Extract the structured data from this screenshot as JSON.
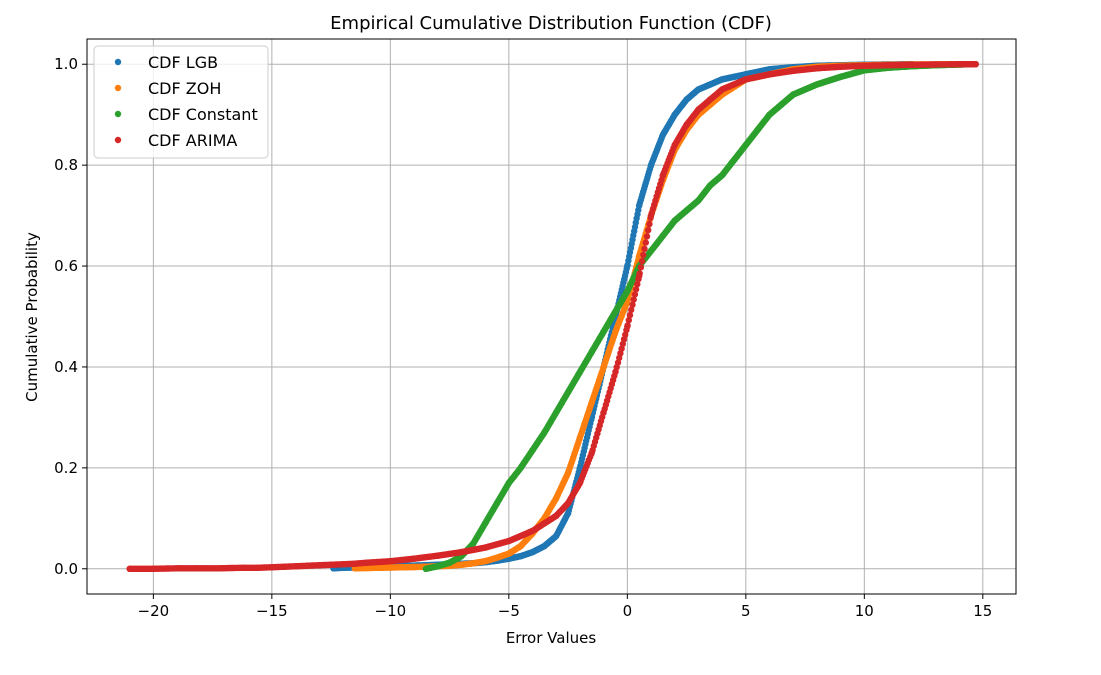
{
  "chart_data": {
    "type": "scatter",
    "title": "Empirical Cumulative Distribution Function (CDF)",
    "xlabel": "Error Values",
    "ylabel": "Cumulative Probability",
    "xlim": [
      -22.8,
      16.4
    ],
    "ylim": [
      -0.05,
      1.05
    ],
    "xticks": [
      -20,
      -15,
      -10,
      -5,
      0,
      5,
      10,
      15
    ],
    "xtick_labels": [
      "−20",
      "−15",
      "−10",
      "−5",
      "0",
      "5",
      "10",
      "15"
    ],
    "yticks": [
      0.0,
      0.2,
      0.4,
      0.6,
      0.8,
      1.0
    ],
    "ytick_labels": [
      "0.0",
      "0.2",
      "0.4",
      "0.6",
      "0.8",
      "1.0"
    ],
    "grid": true,
    "legend_position": "top-left",
    "series": [
      {
        "name": "CDF LGB",
        "color": "#1f77b4",
        "x": [
          -12.4,
          -12.0,
          -11.2,
          -10.8,
          -9.9,
          -9.7,
          -9.2,
          -8.5,
          -8.0,
          -7.5,
          -7.0,
          -6.5,
          -6.0,
          -5.5,
          -5.0,
          -4.5,
          -4.0,
          -3.5,
          -3.0,
          -2.5,
          -2.0,
          -1.5,
          -1.0,
          -0.5,
          0.0,
          0.5,
          1.0,
          1.5,
          2.0,
          2.5,
          3.0,
          3.5,
          4.0,
          5.0,
          6.0,
          7.0,
          8.0,
          9.0,
          10.0,
          11.0,
          12.0
        ],
        "y": [
          0.001,
          0.002,
          0.003,
          0.004,
          0.005,
          0.006,
          0.006,
          0.007,
          0.008,
          0.009,
          0.01,
          0.011,
          0.013,
          0.016,
          0.02,
          0.025,
          0.033,
          0.045,
          0.065,
          0.11,
          0.2,
          0.3,
          0.4,
          0.5,
          0.6,
          0.72,
          0.8,
          0.86,
          0.9,
          0.93,
          0.95,
          0.96,
          0.97,
          0.98,
          0.99,
          0.994,
          0.997,
          0.998,
          0.999,
          0.9995,
          1.0
        ]
      },
      {
        "name": "CDF ZOH",
        "color": "#ff7f0e",
        "x": [
          -11.5,
          -10.5,
          -9.5,
          -8.5,
          -8.0,
          -7.5,
          -7.0,
          -6.5,
          -6.0,
          -5.5,
          -5.0,
          -4.5,
          -4.0,
          -3.5,
          -3.0,
          -2.5,
          -2.0,
          -1.5,
          -1.0,
          -0.5,
          0.0,
          0.5,
          1.0,
          1.5,
          2.0,
          2.5,
          3.0,
          3.5,
          4.0,
          5.0,
          6.0,
          7.0,
          8.0,
          9.0,
          10.0,
          11.0,
          12.0,
          14.0
        ],
        "y": [
          0.001,
          0.002,
          0.003,
          0.004,
          0.005,
          0.006,
          0.008,
          0.011,
          0.015,
          0.022,
          0.03,
          0.045,
          0.07,
          0.1,
          0.14,
          0.19,
          0.26,
          0.33,
          0.4,
          0.47,
          0.53,
          0.62,
          0.7,
          0.77,
          0.83,
          0.87,
          0.9,
          0.92,
          0.94,
          0.97,
          0.98,
          0.99,
          0.995,
          0.997,
          0.998,
          0.999,
          0.9995,
          1.0
        ]
      },
      {
        "name": "CDF Constant",
        "color": "#2ca02c",
        "x": [
          -8.5,
          -8.0,
          -7.5,
          -7.0,
          -6.5,
          -6.0,
          -5.5,
          -5.0,
          -4.5,
          -4.0,
          -3.5,
          -3.0,
          -2.5,
          -2.0,
          -1.5,
          -1.0,
          -0.5,
          0.0,
          0.5,
          1.0,
          1.5,
          2.0,
          2.5,
          3.0,
          3.5,
          4.0,
          4.5,
          5.0,
          5.5,
          6.0,
          6.5,
          7.0,
          8.0,
          9.0,
          10.0,
          11.0,
          12.0,
          13.0,
          14.5
        ],
        "y": [
          0.0,
          0.005,
          0.012,
          0.025,
          0.05,
          0.09,
          0.13,
          0.17,
          0.2,
          0.235,
          0.27,
          0.31,
          0.35,
          0.39,
          0.43,
          0.47,
          0.51,
          0.55,
          0.6,
          0.63,
          0.66,
          0.69,
          0.71,
          0.73,
          0.76,
          0.78,
          0.81,
          0.84,
          0.87,
          0.9,
          0.92,
          0.94,
          0.96,
          0.975,
          0.988,
          0.993,
          0.996,
          0.998,
          1.0
        ]
      },
      {
        "name": "CDF ARIMA",
        "color": "#d62728",
        "x": [
          -21.0,
          -20.0,
          -18.9,
          -18.2,
          -17.8,
          -17.2,
          -16.2,
          -15.6,
          -15.0,
          -14.5,
          -14.0,
          -13.5,
          -13.0,
          -12.5,
          -12.0,
          -11.5,
          -11.0,
          -10.0,
          -9.0,
          -8.0,
          -7.0,
          -6.0,
          -5.0,
          -4.0,
          -3.5,
          -3.0,
          -2.5,
          -2.0,
          -1.5,
          -1.0,
          -0.5,
          0.0,
          0.5,
          1.0,
          1.5,
          2.0,
          2.5,
          3.0,
          3.5,
          4.0,
          5.0,
          6.0,
          7.0,
          8.0,
          9.0,
          10.0,
          11.0,
          12.0,
          13.0,
          14.0,
          14.7
        ],
        "y": [
          0.0,
          0.0,
          0.001,
          0.001,
          0.001,
          0.001,
          0.002,
          0.002,
          0.003,
          0.004,
          0.005,
          0.006,
          0.007,
          0.008,
          0.009,
          0.01,
          0.012,
          0.015,
          0.02,
          0.026,
          0.033,
          0.042,
          0.055,
          0.075,
          0.09,
          0.105,
          0.13,
          0.17,
          0.23,
          0.31,
          0.39,
          0.48,
          0.58,
          0.7,
          0.78,
          0.84,
          0.88,
          0.91,
          0.93,
          0.95,
          0.97,
          0.98,
          0.987,
          0.992,
          0.995,
          0.997,
          0.998,
          0.999,
          0.9995,
          1.0,
          1.0
        ]
      }
    ]
  }
}
